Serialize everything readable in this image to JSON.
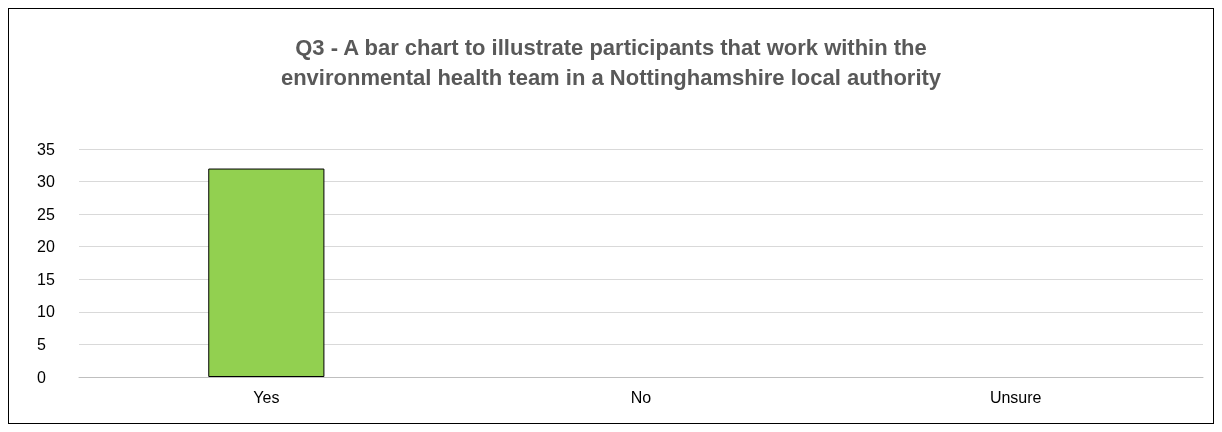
{
  "chart_data": {
    "type": "bar",
    "title": "Q3 - A bar chart to illustrate participants that work within the\nenvironmental health team in a Nottinghamshire local authority",
    "categories": [
      "Yes",
      "No",
      "Unsure"
    ],
    "values": [
      32,
      0,
      0
    ],
    "color": "#92d050",
    "ylim": [
      0,
      35
    ],
    "yticks": [
      0,
      5,
      10,
      15,
      20,
      25,
      30,
      35
    ],
    "grid": "y"
  }
}
